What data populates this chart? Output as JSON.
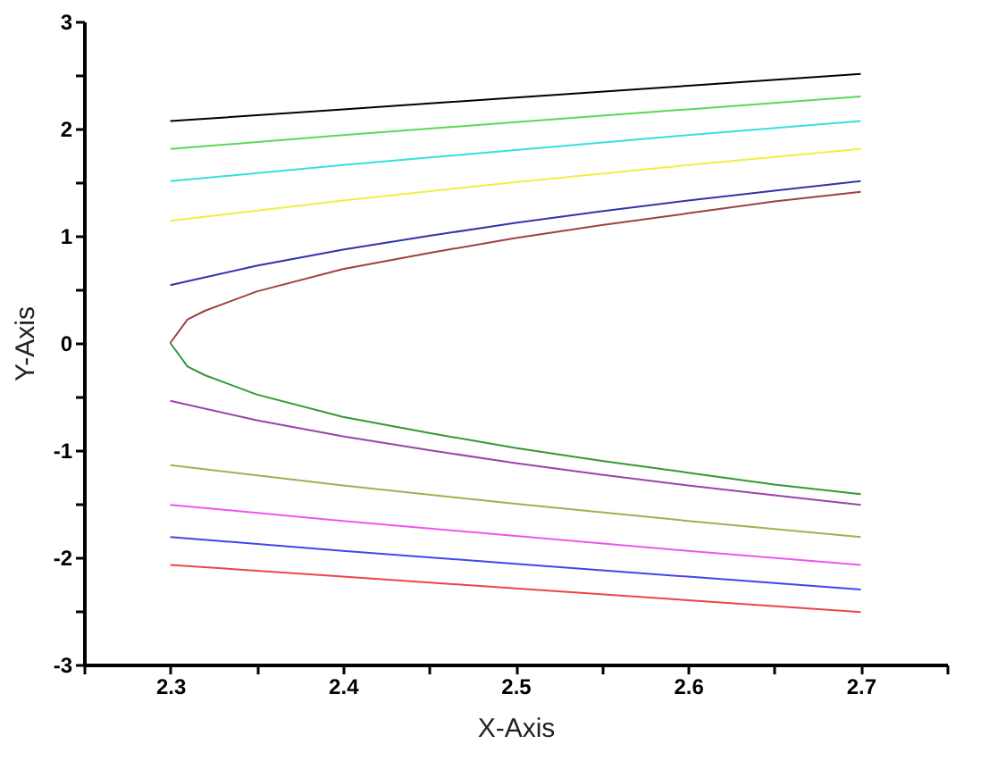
{
  "chart_data": {
    "type": "line",
    "xlabel": "X-Axis",
    "ylabel": "Y-Axis",
    "xlim": [
      2.25,
      2.75
    ],
    "ylim": [
      -3,
      3
    ],
    "xticks": [
      {
        "value": 2.25,
        "label": null
      },
      2.3,
      {
        "value": 2.35,
        "label": null
      },
      2.4,
      {
        "value": 2.45,
        "label": null
      },
      2.5,
      {
        "value": 2.55,
        "label": null
      },
      2.6,
      {
        "value": 2.65,
        "label": null
      },
      2.7,
      {
        "value": 2.75,
        "label": null
      }
    ],
    "yticks": [
      -3,
      {
        "value": -2.5,
        "label": null
      },
      -2,
      {
        "value": -1.5,
        "label": null
      },
      -1,
      {
        "value": -0.5,
        "label": null
      },
      0,
      {
        "value": 0.5,
        "label": null
      },
      1,
      {
        "value": 1.5,
        "label": null
      },
      2,
      {
        "value": 2.5,
        "label": null
      },
      3
    ],
    "grid": false,
    "legend": false,
    "marker": "none",
    "line_style": "solid",
    "series": [
      {
        "color": "#000000",
        "x": [
          2.3,
          2.4,
          2.5,
          2.6,
          2.7
        ],
        "values": [
          2.07,
          2.18,
          2.29,
          2.4,
          2.51
        ]
      },
      {
        "color": "#5ad85a",
        "x": [
          2.3,
          2.4,
          2.5,
          2.6,
          2.7
        ],
        "values": [
          1.81,
          1.94,
          2.06,
          2.18,
          2.3
        ]
      },
      {
        "color": "#33e0e0",
        "x": [
          2.3,
          2.4,
          2.5,
          2.6,
          2.7
        ],
        "values": [
          1.51,
          1.66,
          1.8,
          1.94,
          2.07
        ]
      },
      {
        "color": "#f0f040",
        "x": [
          2.3,
          2.4,
          2.5,
          2.6,
          2.7
        ],
        "values": [
          1.14,
          1.33,
          1.5,
          1.66,
          1.81
        ]
      },
      {
        "color": "#3333aa",
        "x": [
          2.3,
          2.35,
          2.4,
          2.45,
          2.5,
          2.55,
          2.6,
          2.65,
          2.7
        ],
        "values": [
          0.54,
          0.72,
          0.87,
          1.0,
          1.12,
          1.23,
          1.33,
          1.42,
          1.51
        ]
      },
      {
        "color": "#a04040",
        "x": [
          2.3,
          2.31,
          2.32,
          2.35,
          2.4,
          2.45,
          2.5,
          2.55,
          2.6,
          2.65,
          2.7
        ],
        "values": [
          0,
          0.22,
          0.3,
          0.48,
          0.69,
          0.84,
          0.98,
          1.1,
          1.21,
          1.32,
          1.41
        ]
      },
      {
        "color": "#339933",
        "x": [
          2.3,
          2.31,
          2.32,
          2.35,
          2.4,
          2.45,
          2.5,
          2.55,
          2.6,
          2.65,
          2.7
        ],
        "values": [
          0,
          -0.22,
          -0.3,
          -0.48,
          -0.69,
          -0.84,
          -0.98,
          -1.1,
          -1.21,
          -1.32,
          -1.41
        ]
      },
      {
        "color": "#9944aa",
        "x": [
          2.3,
          2.35,
          2.4,
          2.45,
          2.5,
          2.55,
          2.6,
          2.65,
          2.7
        ],
        "values": [
          -0.54,
          -0.72,
          -0.87,
          -1.0,
          -1.12,
          -1.23,
          -1.33,
          -1.42,
          -1.51
        ]
      },
      {
        "color": "#a0b050",
        "x": [
          2.3,
          2.4,
          2.5,
          2.6,
          2.7
        ],
        "values": [
          -1.14,
          -1.33,
          -1.5,
          -1.66,
          -1.81
        ]
      },
      {
        "color": "#ee55ee",
        "x": [
          2.3,
          2.4,
          2.5,
          2.6,
          2.7
        ],
        "values": [
          -1.51,
          -1.66,
          -1.8,
          -1.94,
          -2.07
        ]
      },
      {
        "color": "#4444ee",
        "x": [
          2.3,
          2.4,
          2.5,
          2.6,
          2.7
        ],
        "values": [
          -1.81,
          -1.94,
          -2.06,
          -2.18,
          -2.3
        ]
      },
      {
        "color": "#ee4444",
        "x": [
          2.3,
          2.4,
          2.5,
          2.6,
          2.7
        ],
        "values": [
          -2.07,
          -2.18,
          -2.29,
          -2.4,
          -2.51
        ]
      }
    ]
  }
}
